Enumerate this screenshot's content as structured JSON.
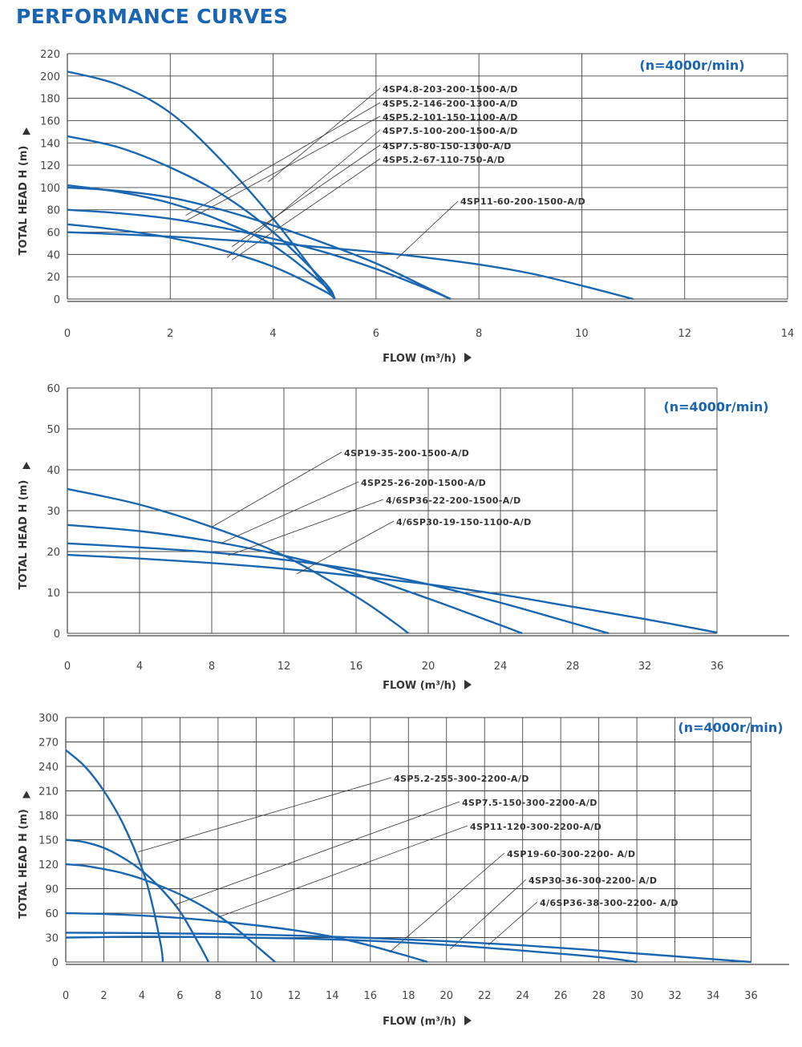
{
  "page_title": "PERFORMANCE CURVES",
  "chart_data": [
    {
      "type": "line",
      "title": "",
      "speed_note": "(n=4000r/min)",
      "xlabel": "FLOW (m³/h)",
      "ylabel": "TOTAL HEAD H (m)",
      "xlim": [
        0,
        14
      ],
      "ylim": [
        0,
        220
      ],
      "xticks": [
        0,
        2,
        4,
        6,
        8,
        10,
        12,
        14
      ],
      "yticks": [
        0,
        20,
        40,
        60,
        80,
        100,
        120,
        140,
        160,
        180,
        200,
        220
      ],
      "grid": true,
      "series": [
        {
          "name": "4SP4.8-203-200-1500-A/D",
          "x": [
            0,
            1,
            2,
            3,
            4,
            5,
            5.2
          ],
          "y": [
            204,
            192,
            167,
            124,
            72,
            12,
            0
          ]
        },
        {
          "name": "4SP5.2-146-200-1300-A/D",
          "x": [
            0,
            1,
            2,
            3,
            4,
            5,
            5.2
          ],
          "y": [
            146,
            136,
            118,
            94,
            60,
            15,
            0
          ]
        },
        {
          "name": "4SP5.2-101-150-1100-A/D",
          "x": [
            0,
            1,
            2,
            3,
            4,
            5,
            5.2
          ],
          "y": [
            102,
            96,
            86,
            70,
            48,
            12,
            0
          ]
        },
        {
          "name": "4SP7.5-100-200-1500-A/D",
          "x": [
            0,
            1,
            2,
            3,
            4,
            5,
            6,
            7,
            7.45
          ],
          "y": [
            100,
            97,
            91,
            80,
            66,
            50,
            32,
            10,
            0
          ]
        },
        {
          "name": "4SP7.5-80-150-1300-A/D",
          "x": [
            0,
            1,
            2,
            3,
            4,
            5,
            6,
            7,
            7.45
          ],
          "y": [
            80,
            77,
            72,
            64,
            54,
            42,
            27,
            9,
            0
          ]
        },
        {
          "name": "4SP5.2-67-110-750-A/D",
          "x": [
            0,
            1,
            2,
            3,
            4,
            5,
            5.2
          ],
          "y": [
            67,
            62,
            55,
            44,
            29,
            7,
            0
          ]
        },
        {
          "name": "4SP11-60-200-1500-A/D",
          "x": [
            0,
            2,
            4,
            6,
            7,
            8,
            9,
            10,
            11
          ],
          "y": [
            60,
            56,
            50,
            42,
            37,
            31,
            23,
            12,
            0
          ]
        }
      ]
    },
    {
      "type": "line",
      "title": "",
      "speed_note": "(n=4000r/min)",
      "xlabel": "FLOW (m³/h)",
      "ylabel": "TOTAL HEAD H (m)",
      "xlim": [
        0,
        40
      ],
      "ylim": [
        0,
        60
      ],
      "xticks": [
        0,
        4,
        8,
        12,
        16,
        20,
        24,
        28,
        32,
        36
      ],
      "yticks": [
        0,
        10,
        20,
        30,
        40,
        50,
        60
      ],
      "grid": true,
      "series": [
        {
          "name": "4SP19-35-200-1500-A/D",
          "x": [
            0,
            4,
            8,
            12,
            16,
            18,
            18.9
          ],
          "y": [
            35.3,
            31.5,
            26,
            19,
            9,
            3,
            0
          ]
        },
        {
          "name": "4SP25-26-200-1500-A/D",
          "x": [
            0,
            4,
            8,
            12,
            16,
            20,
            24,
            25.2
          ],
          "y": [
            26.5,
            25,
            22.5,
            19,
            14.5,
            8.5,
            2,
            0
          ]
        },
        {
          "name": "4/6SP36-22-200-1500-A/D",
          "x": [
            0,
            4,
            8,
            12,
            16,
            20,
            24,
            28,
            30
          ],
          "y": [
            22,
            21,
            19.8,
            18,
            15.5,
            12,
            7.5,
            2.5,
            0
          ]
        },
        {
          "name": "4/6SP30-19-150-1100-A/D",
          "x": [
            0,
            4,
            8,
            12,
            16,
            20,
            24,
            28,
            32,
            36
          ],
          "y": [
            19.2,
            18.3,
            17.2,
            15.8,
            14,
            12,
            9.5,
            6.5,
            3.5,
            0.2
          ]
        }
      ]
    },
    {
      "type": "line",
      "title": "",
      "speed_note": "(n=4000r/min)",
      "xlabel": "FLOW (m³/h)",
      "ylabel": "TOTAL HEAD H (m)",
      "xlim": [
        0,
        38
      ],
      "ylim": [
        0,
        300
      ],
      "xticks": [
        0,
        2,
        4,
        6,
        8,
        10,
        12,
        14,
        16,
        18,
        20,
        22,
        24,
        26,
        28,
        30,
        32,
        34,
        36
      ],
      "yticks": [
        0,
        30,
        60,
        90,
        120,
        150,
        180,
        210,
        240,
        270,
        300
      ],
      "grid": true,
      "series": [
        {
          "name": "4SP5.2-255-300-2200-A/D",
          "x": [
            0,
            1,
            2,
            3,
            4,
            4.5,
            5,
            5.1
          ],
          "y": [
            260,
            240,
            210,
            170,
            115,
            75,
            20,
            0
          ]
        },
        {
          "name": "4SP7.5-150-300-2200-A/D",
          "x": [
            0,
            1,
            2,
            3,
            4,
            5,
            6,
            7,
            7.5
          ],
          "y": [
            150,
            147,
            140,
            128,
            112,
            90,
            62,
            22,
            0
          ]
        },
        {
          "name": "4SP11-120-300-2200-A/D",
          "x": [
            0,
            1,
            2,
            3,
            4,
            5,
            6,
            7,
            8,
            9,
            10,
            11
          ],
          "y": [
            120,
            118,
            114,
            109,
            102,
            93,
            83,
            71,
            57,
            40,
            20,
            0
          ]
        },
        {
          "name": "4SP19-60-300-2200- A/D",
          "x": [
            0,
            2,
            4,
            6,
            8,
            10,
            12,
            14,
            16,
            18,
            19
          ],
          "y": [
            60,
            59,
            57,
            54,
            50,
            45,
            39,
            31,
            20,
            7,
            0
          ]
        },
        {
          "name": "4SP30-36-300-2200- A/D",
          "x": [
            0,
            4,
            8,
            12,
            16,
            20,
            24,
            28,
            30
          ],
          "y": [
            30,
            31,
            30.5,
            29,
            26,
            21,
            14,
            6,
            0
          ]
        },
        {
          "name": "4/6SP36-38-300-2200- A/D",
          "x": [
            0,
            4,
            8,
            12,
            16,
            20,
            24,
            28,
            32,
            36
          ],
          "y": [
            36,
            35.5,
            34.5,
            32.5,
            29.5,
            25.5,
            20.5,
            14,
            7,
            0
          ]
        }
      ]
    }
  ]
}
